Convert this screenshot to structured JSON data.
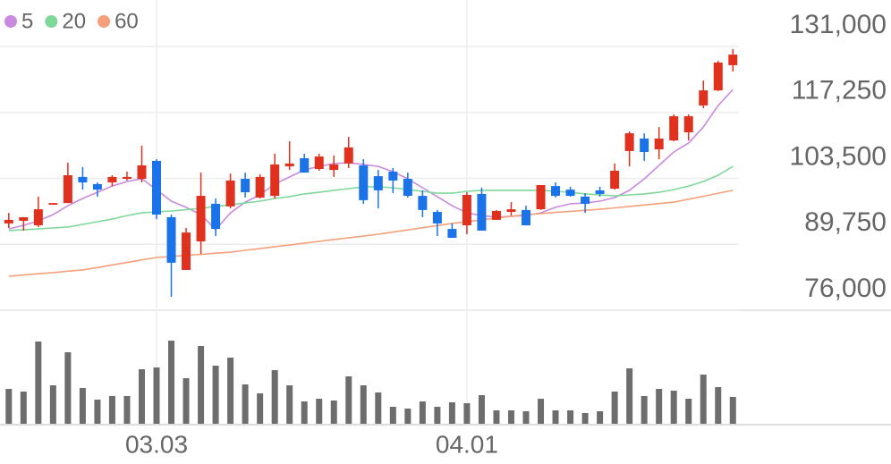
{
  "chart_data": {
    "type": "candlestick",
    "categories": [
      null,
      null,
      null,
      null,
      null,
      null,
      null,
      null,
      null,
      null,
      "03.03",
      null,
      null,
      null,
      null,
      null,
      null,
      null,
      null,
      null,
      null,
      null,
      null,
      null,
      null,
      null,
      null,
      null,
      null,
      null,
      null,
      "04.01",
      null,
      null,
      null,
      null,
      null,
      null,
      null,
      null,
      null,
      null,
      null,
      null,
      null,
      null,
      null,
      null,
      null,
      null
    ],
    "open": [
      94100,
      94650,
      93700,
      98000,
      98350,
      103800,
      102300,
      102650,
      103400,
      103400,
      107150,
      95400,
      84400,
      90350,
      98200,
      97650,
      103400,
      99500,
      99850,
      106000,
      107700,
      105450,
      105250,
      106600,
      106200,
      103950,
      104900,
      103400,
      99850,
      96500,
      92950,
      93700,
      100250,
      94850,
      96500,
      96900,
      97050,
      101900,
      101150,
      99700,
      101000,
      101350,
      109200,
      111800,
      109550,
      111400,
      113100,
      118700,
      121850,
      127100
    ],
    "high": [
      96300,
      95400,
      99700,
      98350,
      106750,
      105850,
      102650,
      104150,
      104900,
      110300,
      107500,
      95950,
      93150,
      104700,
      99300,
      104500,
      104700,
      104350,
      108650,
      111250,
      108650,
      108650,
      108250,
      112150,
      107500,
      105250,
      105650,
      104700,
      101000,
      96900,
      94100,
      100600,
      101550,
      96900,
      98550,
      97800,
      102100,
      102650,
      101750,
      100400,
      101750,
      106600,
      113300,
      112900,
      114200,
      116850,
      116850,
      123900,
      128000,
      130450
    ],
    "low": [
      93150,
      92600,
      93350,
      98000,
      98350,
      101150,
      99700,
      101900,
      103050,
      102650,
      95000,
      78800,
      84400,
      87750,
      91450,
      97250,
      99500,
      99300,
      99300,
      105250,
      104700,
      105100,
      103800,
      105650,
      98200,
      97250,
      100400,
      99500,
      95400,
      91450,
      91100,
      91850,
      92600,
      94850,
      95750,
      93700,
      96900,
      99500,
      99700,
      96300,
      99700,
      101150,
      106000,
      107150,
      107500,
      111250,
      111400,
      118150,
      121700,
      125800
    ],
    "close": [
      94850,
      95400,
      97050,
      98350,
      104150,
      102650,
      101150,
      103800,
      103800,
      106200,
      95950,
      85900,
      92200,
      99850,
      92950,
      103050,
      100600,
      103800,
      106400,
      106600,
      104700,
      108050,
      106400,
      109950,
      98950,
      101000,
      103050,
      99850,
      96900,
      94100,
      91100,
      100050,
      92600,
      96700,
      97050,
      93700,
      102100,
      99850,
      99850,
      98200,
      100250,
      105100,
      112900,
      109000,
      111800,
      116450,
      116450,
      121850,
      127650,
      129300
    ],
    "volume": [
      39,
      36,
      92,
      43,
      80,
      40,
      27,
      31,
      31,
      61,
      63,
      93,
      51,
      87,
      65,
      74,
      44,
      34,
      60,
      43,
      25,
      28,
      26,
      53,
      43,
      35,
      19,
      17,
      25,
      19,
      24,
      23,
      32,
      15,
      15,
      14,
      28,
      15,
      15,
      12,
      14,
      36,
      62,
      31,
      39,
      37,
      28,
      55,
      41,
      30
    ],
    "series": [
      {
        "name": "5",
        "color": "#c98ae0",
        "values": [
          92950,
          93700,
          94650,
          95950,
          97800,
          99300,
          100600,
          101900,
          102850,
          103400,
          101150,
          98750,
          97450,
          95950,
          92800,
          96300,
          98550,
          100050,
          102300,
          103800,
          105250,
          106000,
          106600,
          106750,
          106400,
          106000,
          104900,
          103400,
          101550,
          99700,
          97800,
          96300,
          95750,
          95400,
          95600,
          95750,
          96300,
          97450,
          98200,
          98350,
          98750,
          99500,
          101000,
          103400,
          106200,
          109000,
          110850,
          114200,
          118700,
          122050
        ]
      },
      {
        "name": "20",
        "color": "#7ed89a",
        "values": [
          92600,
          92800,
          92950,
          93150,
          93350,
          93900,
          94450,
          95000,
          95750,
          96300,
          96500,
          96700,
          96950,
          97250,
          97650,
          98000,
          98350,
          98750,
          99300,
          99700,
          100250,
          100600,
          101000,
          101350,
          101750,
          101750,
          101550,
          101150,
          100800,
          100400,
          100400,
          100800,
          101000,
          101000,
          101000,
          101000,
          101000,
          100800,
          100600,
          100250,
          100050,
          99850,
          100050,
          100250,
          100600,
          101150,
          101900,
          102850,
          104150,
          106000
        ]
      },
      {
        "name": "60",
        "color": "#f4a07a",
        "values": [
          83100,
          83350,
          83600,
          83850,
          84150,
          84400,
          84900,
          85450,
          85950,
          86500,
          87000,
          87200,
          87450,
          87650,
          87900,
          88100,
          88500,
          88850,
          89250,
          89600,
          90000,
          90350,
          90750,
          91100,
          91450,
          91850,
          92300,
          92750,
          93200,
          93650,
          94100,
          94450,
          94850,
          95200,
          95600,
          95950,
          96150,
          96400,
          96600,
          96850,
          97050,
          97350,
          97650,
          97950,
          98250,
          98550,
          99150,
          99750,
          100400,
          101000
        ]
      }
    ],
    "up_color": "#e0301e",
    "down_color": "#1a73e8",
    "volume_color": "#6d6d6d",
    "ylim": [
      76000,
      131000
    ],
    "yticks": [
      {
        "value": 76000,
        "label": "76,000"
      },
      {
        "value": 89750,
        "label": "89,750"
      },
      {
        "value": 103500,
        "label": "103,500"
      },
      {
        "value": 117250,
        "label": "117,250"
      },
      {
        "value": 131000,
        "label": "131,000"
      }
    ],
    "grid": true
  }
}
